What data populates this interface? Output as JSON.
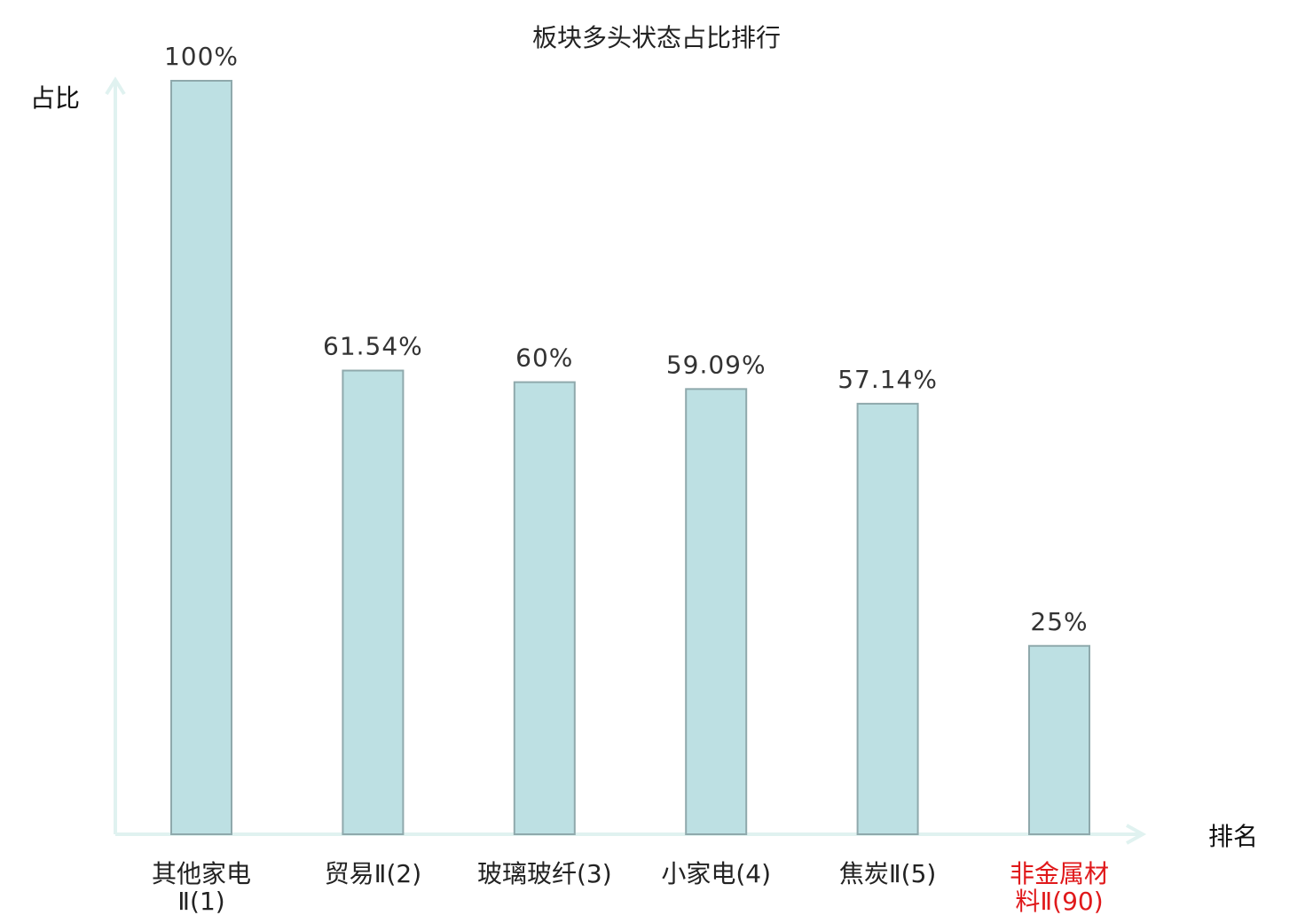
{
  "chart_data": {
    "type": "bar",
    "title": "板块多头状态占比排行",
    "ylabel": "占比",
    "xlabel": "排名",
    "ylim": [
      0,
      100
    ],
    "grid": false,
    "categories": [
      {
        "lines": [
          "其他家电",
          "Ⅱ(1)"
        ],
        "highlight": false
      },
      {
        "lines": [
          "贸易Ⅱ(2)"
        ],
        "highlight": false
      },
      {
        "lines": [
          "玻璃玻纤(3)"
        ],
        "highlight": false
      },
      {
        "lines": [
          "小家电(4)"
        ],
        "highlight": false
      },
      {
        "lines": [
          "焦炭Ⅱ(5)"
        ],
        "highlight": false
      },
      {
        "lines": [
          "非金属材",
          "料Ⅱ(90)"
        ],
        "highlight": true
      }
    ],
    "values": [
      100,
      61.54,
      60,
      59.09,
      57.14,
      25
    ],
    "value_labels": [
      "100%",
      "61.54%",
      "60%",
      "59.09%",
      "57.14%",
      "25%"
    ],
    "colors": {
      "bar_fill": "#bde0e3",
      "bar_stroke": "#8fa9ac",
      "axis": "#e0f2f0",
      "highlight_label": "#e0191b",
      "normal_label": "#222222"
    }
  }
}
